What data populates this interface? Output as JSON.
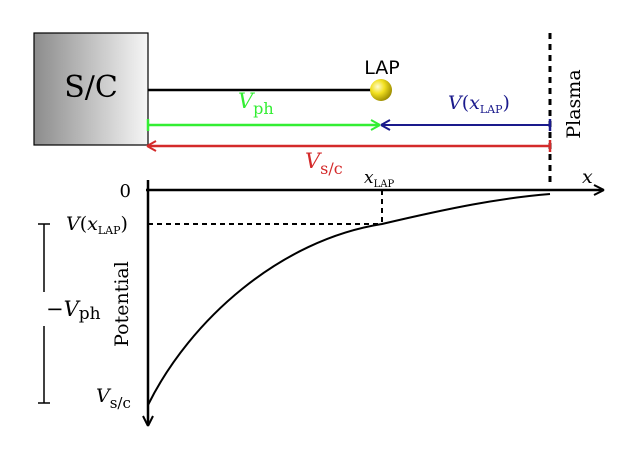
{
  "spacecraft": {
    "label": "S/C"
  },
  "probe": {
    "label": "LAP"
  },
  "plasma": {
    "label": "Plasma"
  },
  "arrows": {
    "vph": {
      "main": "V",
      "sub": "ph",
      "color": "#33ee33"
    },
    "vlap": {
      "main": "V",
      "arg_open": "(",
      "arg_var": "x",
      "arg_sub": "LAP",
      "arg_close": ")",
      "color": "#1a1a8c"
    },
    "vsc": {
      "main": "V",
      "sub": "s/c",
      "color": "#d42a2a"
    }
  },
  "axes": {
    "x_label": "x",
    "y_label": "Potential",
    "zero_label": "0",
    "x_lap_main": "x",
    "x_lap_sub": "LAP",
    "v_lap_main": "V",
    "v_lap_arg_open": "(",
    "v_lap_arg_var": "x",
    "v_lap_arg_sub": "LAP",
    "v_lap_arg_close": ")",
    "v_sc_main": "V",
    "v_sc_sub": "s/c",
    "neg_vph_main": "−V",
    "neg_vph_sub": "ph"
  },
  "colors": {
    "probe": "#f2e020",
    "curve": "#000000"
  }
}
